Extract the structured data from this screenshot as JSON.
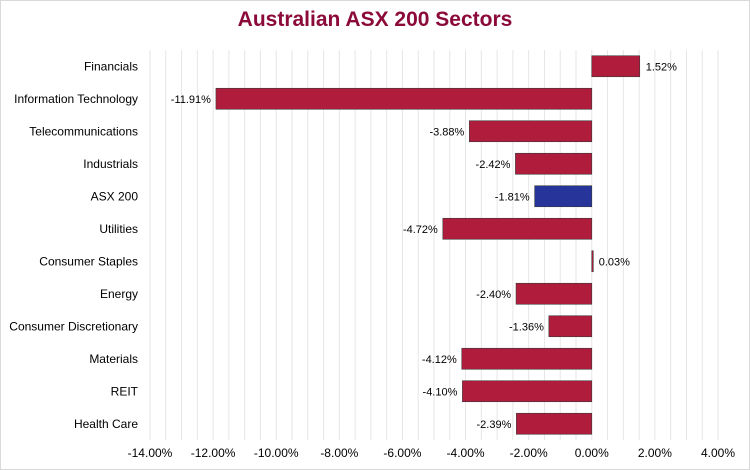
{
  "chart_data": {
    "type": "bar",
    "orientation": "horizontal",
    "title": "Australian ASX 200 Sectors",
    "xlabel": "",
    "ylabel": "",
    "xlim": [
      -14,
      4
    ],
    "x_ticks": [
      -14,
      -12,
      -10,
      -8,
      -6,
      -4,
      -2,
      0,
      2,
      4
    ],
    "x_tick_labels": [
      "-14.00%",
      "-12.00%",
      "-10.00%",
      "-8.00%",
      "-6.00%",
      "-4.00%",
      "-2.00%",
      "0.00%",
      "2.00%",
      "4.00%"
    ],
    "grid": true,
    "categories": [
      "Financials",
      "Information Technology",
      "Telecommunications",
      "Industrials",
      "ASX 200",
      "Utilities",
      "Consumer Staples",
      "Energy",
      "Consumer Discretionary",
      "Materials",
      "REIT",
      "Health Care"
    ],
    "values": [
      1.52,
      -11.91,
      -3.88,
      -2.42,
      -1.81,
      -4.72,
      0.03,
      -2.4,
      -1.36,
      -4.12,
      -4.1,
      -2.39
    ],
    "data_labels": [
      "1.52%",
      "-11.91%",
      "-3.88%",
      "-2.42%",
      "-1.81%",
      "-4.72%",
      "0.03%",
      "-2.40%",
      "-1.36%",
      "-4.12%",
      "-4.10%",
      "-2.39%"
    ],
    "highlight_category": "ASX 200",
    "colors": {
      "sector": "#b01c3c",
      "index": "#27359a",
      "title": "#8b0a3a",
      "grid": "#e6e6e6"
    }
  }
}
